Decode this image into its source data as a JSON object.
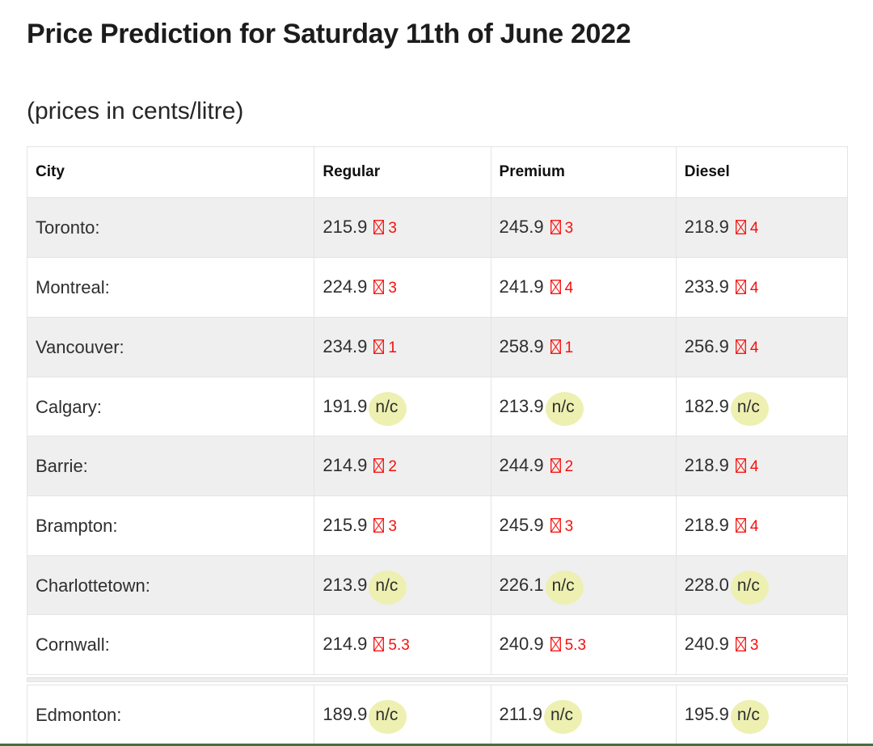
{
  "page": {
    "title": "Price Prediction for Saturday 11th of June 2022",
    "subtitle": "(prices in cents/litre)"
  },
  "table": {
    "headers": [
      "City",
      "Regular",
      "Premium",
      "Diesel"
    ],
    "rows": [
      {
        "city": "Toronto:",
        "cells": [
          {
            "price": "215.9",
            "change": "3",
            "kind": "up"
          },
          {
            "price": "245.9",
            "change": "3",
            "kind": "up"
          },
          {
            "price": "218.9",
            "change": "4",
            "kind": "up"
          }
        ]
      },
      {
        "city": "Montreal:",
        "cells": [
          {
            "price": "224.9",
            "change": "3",
            "kind": "up"
          },
          {
            "price": "241.9",
            "change": "4",
            "kind": "up"
          },
          {
            "price": "233.9",
            "change": "4",
            "kind": "up"
          }
        ]
      },
      {
        "city": "Vancouver:",
        "cells": [
          {
            "price": "234.9",
            "change": "1",
            "kind": "up"
          },
          {
            "price": "258.9",
            "change": "1",
            "kind": "up"
          },
          {
            "price": "256.9",
            "change": "4",
            "kind": "up"
          }
        ]
      },
      {
        "city": "Calgary:",
        "cells": [
          {
            "price": "191.9",
            "change": "n/c",
            "kind": "nc"
          },
          {
            "price": "213.9",
            "change": "n/c",
            "kind": "nc"
          },
          {
            "price": "182.9",
            "change": "n/c",
            "kind": "nc"
          }
        ]
      },
      {
        "city": "Barrie:",
        "cells": [
          {
            "price": "214.9",
            "change": "2",
            "kind": "up"
          },
          {
            "price": "244.9",
            "change": "2",
            "kind": "up"
          },
          {
            "price": "218.9",
            "change": "4",
            "kind": "up"
          }
        ]
      },
      {
        "city": "Brampton:",
        "cells": [
          {
            "price": "215.9",
            "change": "3",
            "kind": "up"
          },
          {
            "price": "245.9",
            "change": "3",
            "kind": "up"
          },
          {
            "price": "218.9",
            "change": "4",
            "kind": "up"
          }
        ]
      },
      {
        "city": "Charlottetown:",
        "cells": [
          {
            "price": "213.9",
            "change": "n/c",
            "kind": "nc"
          },
          {
            "price": "226.1",
            "change": "n/c",
            "kind": "nc"
          },
          {
            "price": "228.0",
            "change": "n/c",
            "kind": "nc"
          }
        ]
      },
      {
        "city": "Cornwall:",
        "cells": [
          {
            "price": "214.9",
            "change": "5.3",
            "kind": "up"
          },
          {
            "price": "240.9",
            "change": "5.3",
            "kind": "up"
          },
          {
            "price": "240.9",
            "change": "3",
            "kind": "up"
          }
        ]
      }
    ],
    "extra_rows": [
      {
        "city": "Edmonton:",
        "cells": [
          {
            "price": "189.9",
            "change": "n/c",
            "kind": "nc"
          },
          {
            "price": "211.9",
            "change": "n/c",
            "kind": "nc"
          },
          {
            "price": "195.9",
            "change": "n/c",
            "kind": "nc"
          }
        ]
      }
    ],
    "no_change_label": "n/c"
  },
  "icons": {
    "change_up_icon": "missing-glyph-tofu-box-x"
  },
  "colors": {
    "change_up_red": "#f60f0c",
    "no_change_highlight": "#edf0b1",
    "row_stripe": "#efefef",
    "bottom_bar_green": "#44703e"
  }
}
